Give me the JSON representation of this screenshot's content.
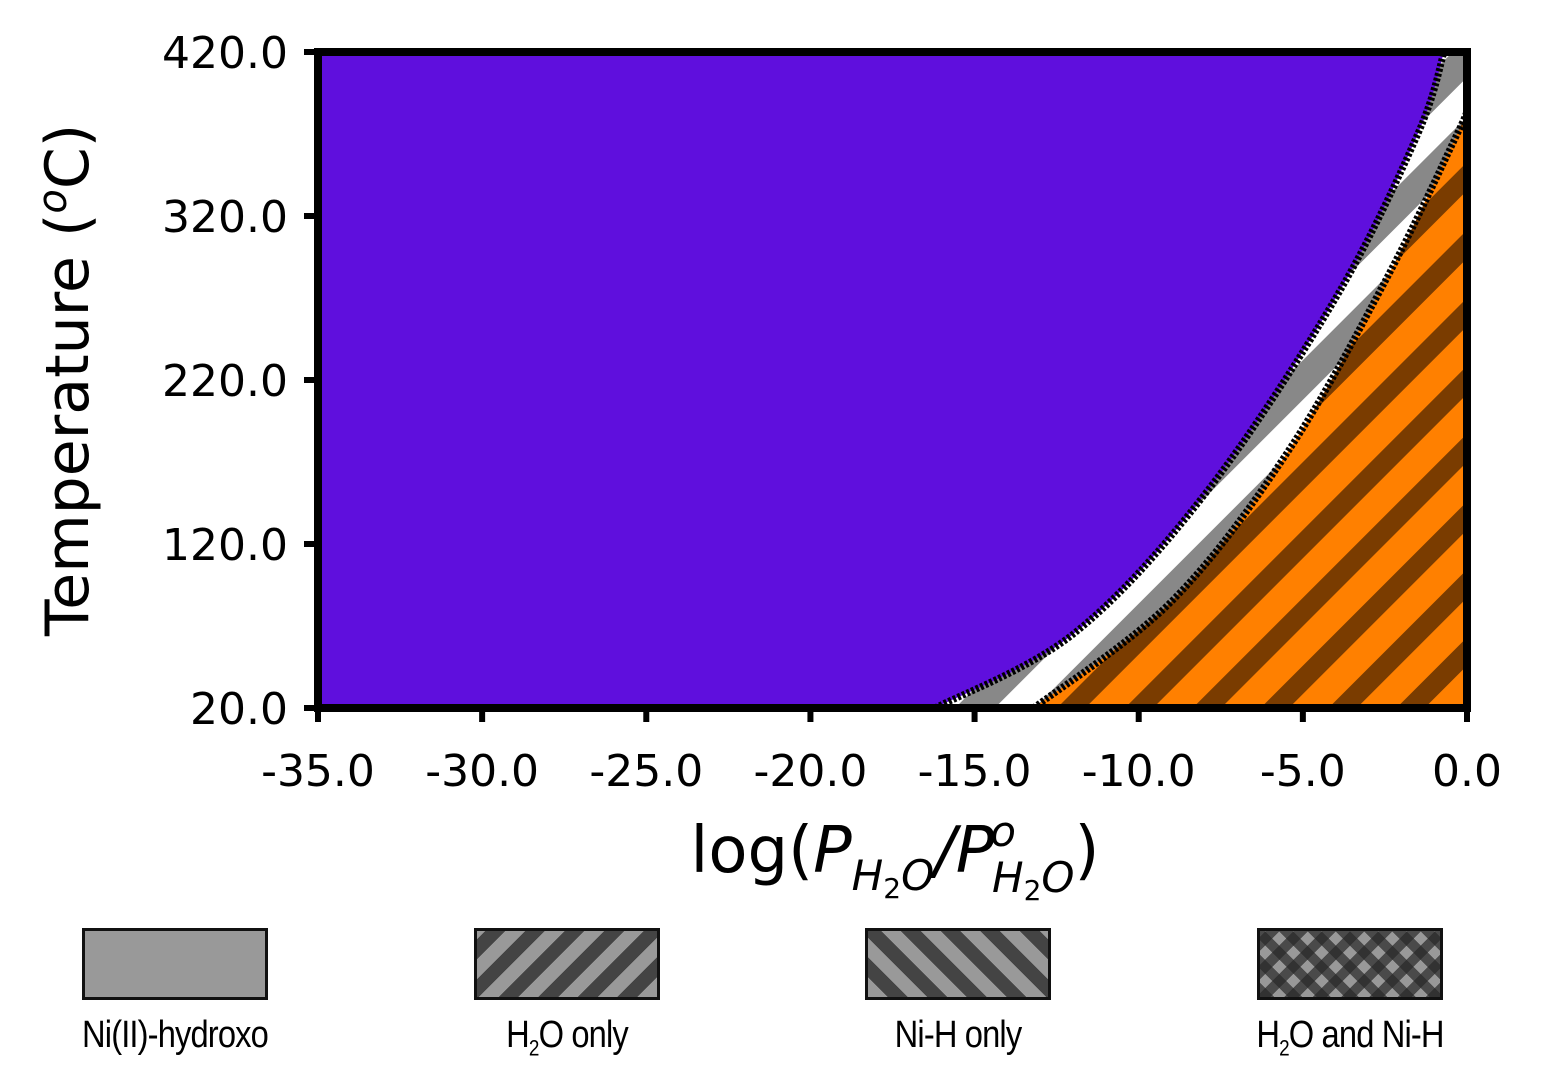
{
  "chart_data": {
    "type": "phase_diagram",
    "xlabel_parts": {
      "main": "log(",
      "p": "P",
      "sub": "H",
      "sub2": "2",
      "subo": "O",
      "slash": "/",
      "sup": "o",
      "close": ")"
    },
    "ylabel": "Temperature (",
    "ylabel_sup": "o",
    "ylabel_unit": "C)",
    "xlim": [
      -35.0,
      0.0
    ],
    "ylim": [
      20.0,
      420.0
    ],
    "x_ticks": [
      -35.0,
      -30.0,
      -25.0,
      -20.0,
      -15.0,
      -10.0,
      -5.0,
      0.0
    ],
    "x_tick_labels": [
      "-35.0",
      "-30.0",
      "-25.0",
      "-20.0",
      "-15.0",
      "-10.0",
      "-5.0",
      "0.0"
    ],
    "y_ticks": [
      20.0,
      120.0,
      220.0,
      320.0,
      420.0
    ],
    "y_tick_labels": [
      "20.0",
      "120.0",
      "220.0",
      "320.0",
      "420.0"
    ],
    "regions": [
      {
        "name": "Ni(II)-hydroxo region",
        "color": "#5f0fdd"
      },
      {
        "name": "transition band",
        "color": "#888888"
      },
      {
        "name": "H2O only region",
        "color": "#ff8000",
        "hatch_color": "#7a3c00"
      }
    ],
    "boundaries": [
      {
        "id": "upper",
        "points": [
          [
            -16.2,
            20.0
          ],
          [
            -12.0,
            65.0
          ],
          [
            -8.0,
            150.0
          ],
          [
            -4.0,
            270.0
          ],
          [
            -1.5,
            370.0
          ],
          [
            -0.7,
            420.0
          ]
        ]
      },
      {
        "id": "lower",
        "points": [
          [
            -13.2,
            20.0
          ],
          [
            -9.0,
            85.0
          ],
          [
            -5.5,
            175.0
          ],
          [
            -2.5,
            280.0
          ],
          [
            -0.3,
            370.0
          ],
          [
            0.0,
            385.0
          ]
        ]
      }
    ]
  },
  "legend": [
    {
      "label": "Ni(II)-hydroxo",
      "pattern": "solid",
      "color": "#999999"
    },
    {
      "label_pre": "H",
      "label_sub": "2",
      "label_post": "O only",
      "pattern": "diag-fwd",
      "color": "#999999"
    },
    {
      "label": "Ni-H only",
      "pattern": "diag-back",
      "color": "#999999"
    },
    {
      "label_pre": "H",
      "label_sub": "2",
      "label_post": "O and Ni-H",
      "pattern": "cross",
      "color": "#999999"
    }
  ]
}
